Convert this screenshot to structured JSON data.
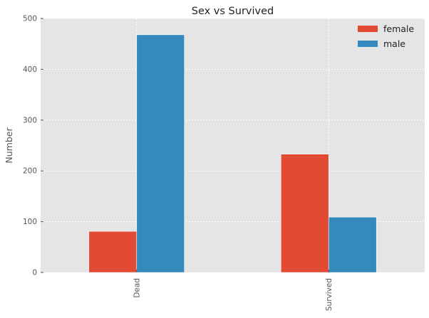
{
  "chart_data": {
    "type": "bar",
    "title": "Sex vs Survived",
    "xlabel": "",
    "ylabel": "Number",
    "categories": [
      "Dead",
      "Survived"
    ],
    "series": [
      {
        "name": "female",
        "color": "#e24a33",
        "values": [
          81,
          233
        ]
      },
      {
        "name": "male",
        "color": "#348abd",
        "values": [
          468,
          109
        ]
      }
    ],
    "ylim": [
      0,
      500
    ],
    "yticks": [
      0,
      100,
      200,
      300,
      400,
      500
    ],
    "grid": true,
    "legend_position": "top-right",
    "background_color": "#e5e5e5"
  }
}
